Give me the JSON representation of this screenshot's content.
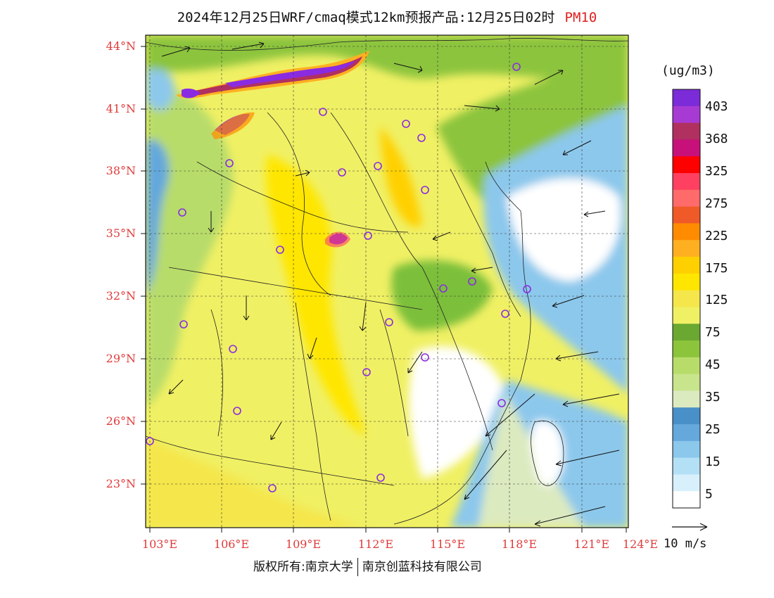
{
  "title": {
    "main": "2024年12月25日WRF/cmaq模式12km预报产品:12月25日02时",
    "variable": "PM10"
  },
  "colors": {
    "purple": "#8a2be2",
    "yellow": "#f0f064",
    "green": "#7cbf3a",
    "lightblue": "#a6d8f0",
    "axis_label": "#e03a3a"
  },
  "axes": {
    "lat_labels": [
      "44°N",
      "41°N",
      "38°N",
      "35°N",
      "32°N",
      "29°N",
      "26°N",
      "23°N"
    ],
    "lon_labels": [
      "103°E",
      "106°E",
      "109°E",
      "112°E",
      "115°E",
      "118°E",
      "121°E",
      "124°E"
    ]
  },
  "colorbar": {
    "unit": "(ug/m3)",
    "labels": [
      "403",
      "368",
      "325",
      "275",
      "225",
      "175",
      "125",
      "75",
      "45",
      "35",
      "25",
      "15",
      "5"
    ],
    "colors": [
      "#7b2bd8",
      "#a83ad4",
      "#b03060",
      "#c8107a",
      "#ff0000",
      "#ff4060",
      "#ff6a6a",
      "#f05a28",
      "#ff8c00",
      "#ffb020",
      "#ffd000",
      "#ffe600",
      "#f5e64b",
      "#f0f064",
      "#6aa832",
      "#8cc43c",
      "#b8dc6a",
      "#c8e48c",
      "#dceac0",
      "#4a90c8",
      "#64a8dc",
      "#8cc8ec",
      "#b4e0f6",
      "#d8f0fc",
      "#ffffff"
    ]
  },
  "wind": {
    "label": "10 m/s"
  },
  "footer": {
    "left": "版权所有:南京大学",
    "right": "南京创蓝科技有限公司"
  }
}
